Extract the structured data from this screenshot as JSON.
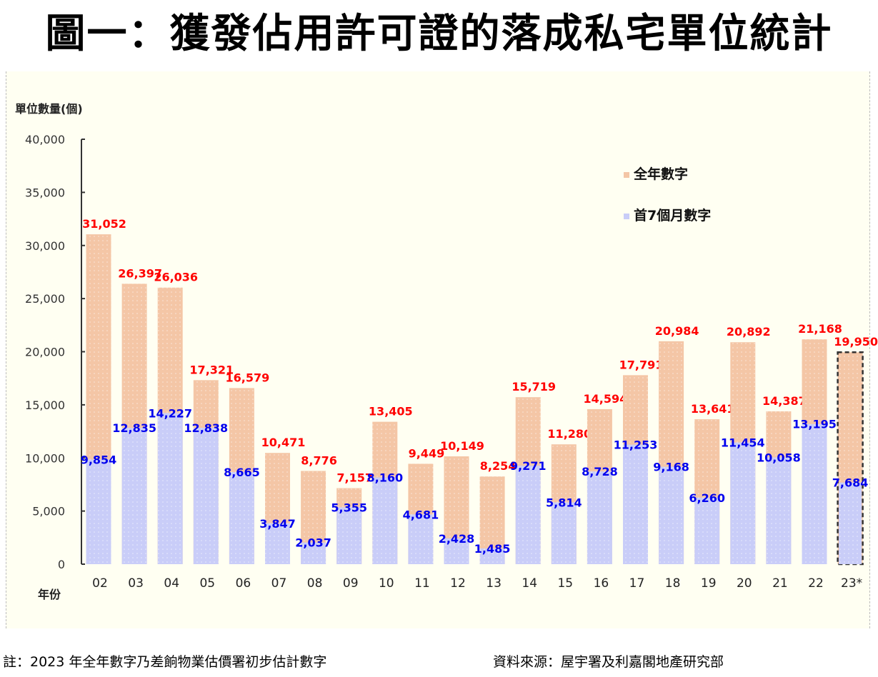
{
  "title": "圖一：獲發佔用許可證的落成私宅單位統計",
  "footer": {
    "note": "註：2023 年全年數字乃差餉物業估價署初步估計數字",
    "source": "資料來源：屋宇署及利嘉閣地產研究部"
  },
  "chart_data": {
    "type": "bar",
    "title": "圖一：獲發佔用許可證的落成私宅單位統計",
    "ylabel": "單位數量(個)",
    "xlabel": "年份",
    "ylim": [
      0,
      40000
    ],
    "yticks": [
      0,
      5000,
      10000,
      15000,
      20000,
      25000,
      30000,
      35000,
      40000
    ],
    "ytick_labels": [
      "0",
      "5,000",
      "10,000",
      "15,000",
      "20,000",
      "25,000",
      "30,000",
      "35,000",
      "40,000"
    ],
    "legend_position": "top-right",
    "categories": [
      "02",
      "03",
      "04",
      "05",
      "06",
      "07",
      "08",
      "09",
      "10",
      "11",
      "12",
      "13",
      "14",
      "15",
      "16",
      "17",
      "18",
      "19",
      "20",
      "21",
      "22",
      "23*"
    ],
    "series": [
      {
        "name": "全年數字",
        "color": "#f4c6a6",
        "label_color": "#ff0000",
        "values": [
          31052,
          26397,
          26036,
          17321,
          16579,
          10471,
          8776,
          7157,
          13405,
          9449,
          10149,
          8254,
          15719,
          11280,
          14594,
          17791,
          20984,
          13641,
          20892,
          14387,
          21168,
          19950
        ],
        "labels": [
          "31,052",
          "26,397",
          "26,036",
          "17,321",
          "16,579",
          "10,471",
          "8,776",
          "7,157",
          "13,405",
          "9,449",
          "10,149",
          "8,254",
          "15,719",
          "11,280",
          "14,594",
          "17,791",
          "20,984",
          "13,641",
          "20,892",
          "14,387",
          "21,168",
          "19,950"
        ]
      },
      {
        "name": "首7個月數字",
        "color": "#c9cdf8",
        "label_color": "#0000ee",
        "values": [
          9854,
          12835,
          14227,
          12838,
          8665,
          3847,
          2037,
          5355,
          8160,
          4681,
          2428,
          1485,
          9271,
          5814,
          8728,
          11253,
          9168,
          6260,
          11454,
          10058,
          13195,
          7684
        ],
        "labels": [
          "9,854",
          "12,835",
          "14,227",
          "12,838",
          "8,665",
          "3,847",
          "2,037",
          "5,355",
          "8,160",
          "4,681",
          "2,428",
          "1,485",
          "9,271",
          "5,814",
          "8,728",
          "11,253",
          "9,168",
          "6,260",
          "11,454",
          "10,058",
          "13,195",
          "7,684"
        ]
      }
    ],
    "estimated_category": "23*"
  }
}
